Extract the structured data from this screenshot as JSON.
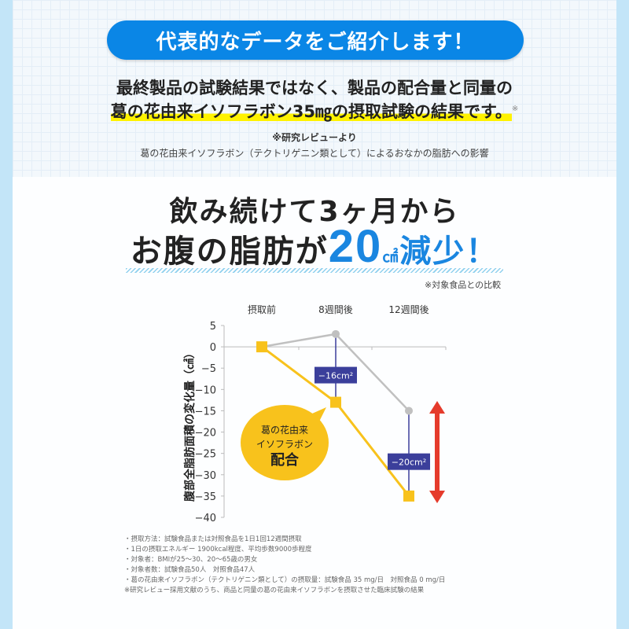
{
  "banner": "代表的なデータをご紹介します！",
  "lead": {
    "line1": "最終製品の試験結果ではなく、製品の配合量と同量の",
    "line2": "葛の花由来イソフラボン35㎎の摂取試験の結果です。",
    "mark": "※"
  },
  "source": {
    "title": "※研究レビューより",
    "subtitle": "葛の花由来イソフラボン（テクトリゲニン類として）によるおなかの脂肪への影響"
  },
  "headline": {
    "line1": "飲み続けて3ヶ月から",
    "line2_pre": "お腹の脂肪が",
    "line2_num": "20",
    "line2_unit": "㎠",
    "line2_post": "減少！"
  },
  "comparison_note": "※対象食品との比較",
  "chart_data": {
    "type": "line",
    "categories": [
      "摂取前",
      "8週間後",
      "12週間後"
    ],
    "ylabel": "腹部全脂肪面積の変化量（㎠）",
    "ylim": [
      -40,
      5
    ],
    "yticks": [
      5,
      0,
      -5,
      -10,
      -15,
      -20,
      -25,
      -30,
      -35,
      -40
    ],
    "series": [
      {
        "name": "葛の花由来イソフラボン配合",
        "values": [
          0,
          -13,
          -35
        ],
        "color": "#f8c21c",
        "marker": "square"
      },
      {
        "values": [
          0,
          3,
          -15
        ],
        "color": "#c0c0c0",
        "marker": "circle"
      }
    ],
    "annotations": [
      {
        "label": "−16cm²",
        "category": "8週間後"
      },
      {
        "label": "−20cm²",
        "category": "12週間後"
      }
    ],
    "bubble": {
      "line1": "葛の花由来",
      "line2": "イソフラボン",
      "line3": "配合"
    },
    "colors": {
      "annotation_box": "#3b3f9b",
      "arrow": "#e53b2c",
      "bubble": "#f8c21c"
    }
  },
  "notes": [
    "・摂取方法：試験食品または対照食品を1日1回12週間摂取",
    "・1日の摂取エネルギー 1900kcal程度、平均歩数9000歩程度",
    "・対象者：BMIが25〜30、20〜65歳の男女",
    "・対象者数：試験食品50人　対照食品47人",
    "・葛の花由来イソフラボン（テクトリゲニン類として）の摂取量：試験食品 35 mg/日　対照食品 0 mg/日",
    "※研究レビュー採用文献のうち、商品と同量の葛の花由来イソフラボンを摂取させた臨床試験の結果"
  ]
}
